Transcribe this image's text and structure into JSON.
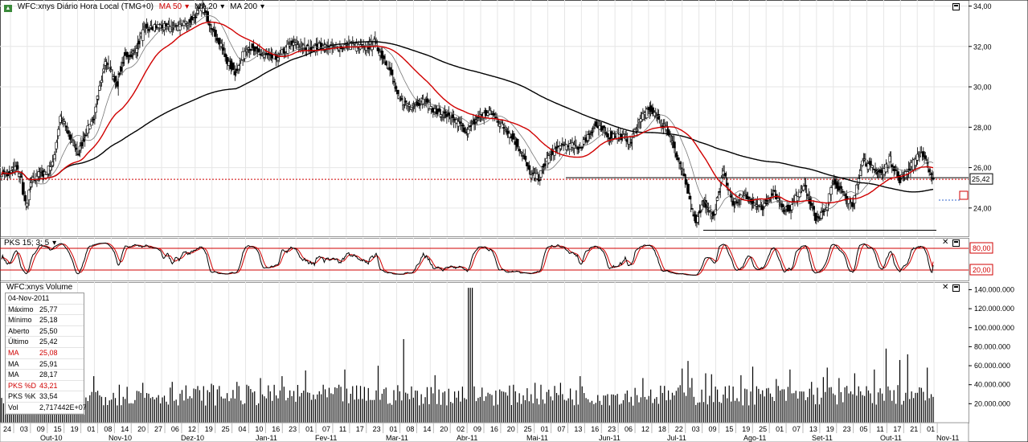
{
  "header": {
    "title": "WFC:xnys Diário Hora Local (TMG+0)",
    "ma_labels": [
      {
        "label": "MA 50",
        "color": "#d00000"
      },
      {
        "label": "MA 20",
        "color": "#000000"
      },
      {
        "label": "MA 200",
        "color": "#000000"
      }
    ]
  },
  "stoch_header": "PKS 15; 3; 5",
  "volume_header": "WFC:xnys Volume",
  "info": {
    "date": "04-Nov-2011",
    "rows": [
      {
        "label": "Máximo",
        "value": "25,77",
        "red": false
      },
      {
        "label": "Mínimo",
        "value": "25,18",
        "red": false
      },
      {
        "label": "Aberto",
        "value": "25,50",
        "red": false
      },
      {
        "label": "Último",
        "value": "25,42",
        "red": false
      },
      {
        "label": "MA",
        "value": "25,08",
        "red": true
      },
      {
        "label": "MA",
        "value": "25,91",
        "red": false
      },
      {
        "label": "MA",
        "value": "28,17",
        "red": false
      },
      {
        "label": "PKS %D",
        "value": "43,21",
        "red": true
      },
      {
        "label": "PKS %K",
        "value": "33,54",
        "red": false
      },
      {
        "label": "Vol",
        "value": "2,717442E+07",
        "red": false
      }
    ]
  },
  "chart_data": [
    {
      "type": "candlestick",
      "title": "WFC:xnys Diário Hora Local (TMG+0)",
      "price_ticks": [
        "34,00",
        "32,00",
        "30,00",
        "28,00",
        "26,00",
        "24,00"
      ],
      "ylim": [
        22.6,
        34.3
      ],
      "last_price_label": "25,42",
      "last_price": 25.42,
      "support_level": 22.9,
      "resistance_level": 25.5,
      "close_anchors": [
        [
          0,
          25.8
        ],
        [
          8,
          25.6
        ],
        [
          14,
          26.1
        ],
        [
          20,
          25.4
        ],
        [
          25,
          23.9
        ],
        [
          30,
          25.3
        ],
        [
          36,
          25.6
        ],
        [
          46,
          25.8
        ],
        [
          53,
          26.3
        ],
        [
          60,
          28.6
        ],
        [
          70,
          27.4
        ],
        [
          78,
          26.7
        ],
        [
          85,
          27.6
        ],
        [
          95,
          28.6
        ],
        [
          105,
          31.3
        ],
        [
          118,
          30.2
        ],
        [
          125,
          31.5
        ],
        [
          135,
          31.7
        ],
        [
          145,
          32.8
        ],
        [
          160,
          33.0
        ],
        [
          175,
          32.9
        ],
        [
          190,
          33.2
        ],
        [
          205,
          33.9
        ],
        [
          222,
          32.2
        ],
        [
          230,
          31.3
        ],
        [
          238,
          30.7
        ],
        [
          250,
          32.0
        ],
        [
          265,
          31.6
        ],
        [
          280,
          31.4
        ],
        [
          295,
          32.1
        ],
        [
          310,
          31.9
        ],
        [
          325,
          32.0
        ],
        [
          340,
          31.9
        ],
        [
          355,
          32.1
        ],
        [
          370,
          31.9
        ],
        [
          380,
          32.2
        ],
        [
          395,
          31.0
        ],
        [
          405,
          29.4
        ],
        [
          415,
          29.1
        ],
        [
          430,
          29.3
        ],
        [
          445,
          28.7
        ],
        [
          460,
          28.4
        ],
        [
          475,
          27.8
        ],
        [
          488,
          28.6
        ],
        [
          500,
          28.7
        ],
        [
          510,
          28.1
        ],
        [
          520,
          27.6
        ],
        [
          530,
          26.8
        ],
        [
          540,
          25.6
        ],
        [
          548,
          25.5
        ],
        [
          555,
          26.3
        ],
        [
          565,
          26.9
        ],
        [
          575,
          27.1
        ],
        [
          590,
          27.0
        ],
        [
          605,
          28.1
        ],
        [
          620,
          27.6
        ],
        [
          630,
          27.6
        ],
        [
          642,
          27.3
        ],
        [
          652,
          28.5
        ],
        [
          662,
          28.9
        ],
        [
          672,
          28.3
        ],
        [
          682,
          27.6
        ],
        [
          692,
          26.1
        ],
        [
          700,
          24.8
        ],
        [
          708,
          23.4
        ],
        [
          716,
          24.3
        ],
        [
          726,
          23.5
        ],
        [
          736,
          25.8
        ],
        [
          745,
          24.3
        ],
        [
          760,
          24.6
        ],
        [
          775,
          24.0
        ],
        [
          787,
          24.8
        ],
        [
          797,
          24.0
        ],
        [
          805,
          24.0
        ],
        [
          818,
          25.2
        ],
        [
          830,
          23.5
        ],
        [
          840,
          23.8
        ],
        [
          848,
          25.3
        ],
        [
          858,
          24.9
        ],
        [
          868,
          24.0
        ],
        [
          878,
          26.5
        ],
        [
          886,
          26.0
        ],
        [
          898,
          25.7
        ],
        [
          906,
          26.4
        ],
        [
          916,
          25.4
        ],
        [
          928,
          26.1
        ],
        [
          938,
          26.8
        ],
        [
          950,
          25.4
        ]
      ],
      "moving_averages": [
        {
          "name": "MA 50",
          "value": "25,08",
          "color": "#d00000"
        },
        {
          "name": "MA 20",
          "value": "25,91",
          "color": "#777777"
        },
        {
          "name": "MA 200",
          "value": "28,17",
          "color": "#000000"
        }
      ],
      "date_labels_top": [
        "24",
        "03",
        "09",
        "15",
        "19",
        "01",
        "08",
        "14",
        "20",
        "27",
        "06",
        "12",
        "19",
        "25",
        "04",
        "10",
        "16",
        "23",
        "01",
        "07",
        "11",
        "17",
        "23",
        "01",
        "08",
        "14",
        "20",
        "02",
        "09",
        "16",
        "20",
        "25",
        "01",
        "07",
        "13",
        "16",
        "23",
        "06",
        "12",
        "18",
        "22",
        "03",
        "09",
        "15",
        "19",
        "25",
        "01",
        "07",
        "13",
        "19",
        "23",
        "05",
        "11",
        "17",
        "21",
        "01"
      ],
      "month_labels": [
        "Out-10",
        "Nov-10",
        "Dez-10",
        "Jan-11",
        "Fev-11",
        "Mar-11",
        "Abr-11",
        "Mai-11",
        "Jun-11",
        "Jul-11",
        "Ago-11",
        "Set-11",
        "Out-11",
        "Nov-11"
      ]
    },
    {
      "type": "line",
      "title": "PKS 15; 3; 5",
      "levels": [
        "80,00",
        "20,00"
      ],
      "series": [
        {
          "name": "PKS %K",
          "value": "33,54",
          "color": "#000000"
        },
        {
          "name": "PKS %D",
          "value": "43,21",
          "color": "#d00000"
        }
      ]
    },
    {
      "type": "bar",
      "title": "WFC:xnys Volume",
      "volume_ticks": [
        "140.000.000",
        "120.000.000",
        "100.000.000",
        "80.000.000",
        "60.000.000",
        "40.000.000",
        "20.000.000"
      ],
      "ylim": [
        0,
        148000000
      ],
      "last_volume": 27174420,
      "spikes": [
        [
          20,
          32
        ],
        [
          29,
          42
        ],
        [
          45,
          38
        ],
        [
          68,
          37
        ],
        [
          95,
          49
        ],
        [
          120,
          40
        ],
        [
          145,
          42
        ],
        [
          175,
          43
        ],
        [
          215,
          41
        ],
        [
          240,
          43
        ],
        [
          265,
          47
        ],
        [
          287,
          49
        ],
        [
          310,
          55
        ],
        [
          350,
          56
        ],
        [
          385,
          60
        ],
        [
          411,
          88
        ],
        [
          443,
          50
        ],
        [
          453,
          33
        ],
        [
          470,
          38
        ],
        [
          545,
          42
        ],
        [
          570,
          42
        ],
        [
          590,
          49
        ],
        [
          655,
          47
        ],
        [
          695,
          57
        ],
        [
          700,
          65
        ],
        [
          705,
          47
        ],
        [
          718,
          52
        ],
        [
          725,
          51
        ],
        [
          755,
          50
        ],
        [
          767,
          59
        ],
        [
          790,
          46
        ],
        [
          805,
          56
        ],
        [
          826,
          43
        ],
        [
          838,
          48
        ],
        [
          842,
          58
        ],
        [
          855,
          47
        ],
        [
          870,
          52
        ],
        [
          890,
          56
        ],
        [
          902,
          78
        ],
        [
          917,
          66
        ],
        [
          925,
          72
        ],
        [
          944,
          58
        ]
      ]
    }
  ]
}
